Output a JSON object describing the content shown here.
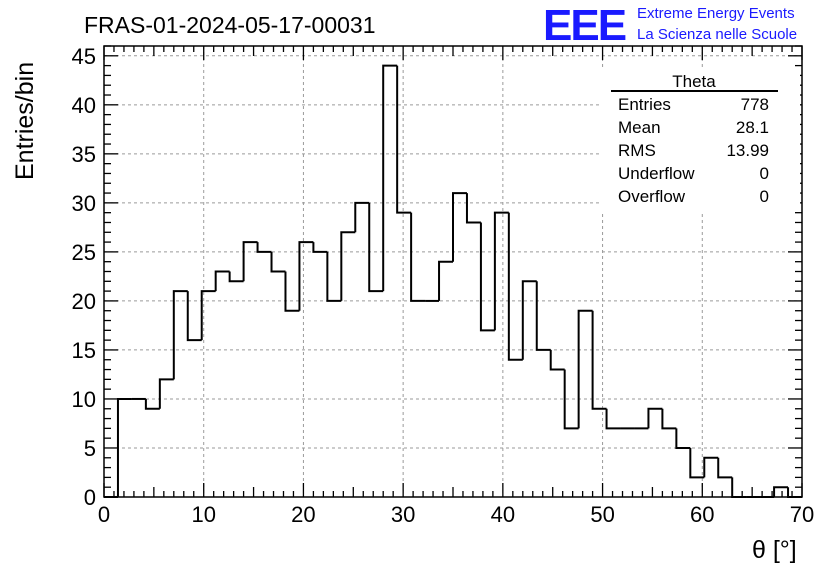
{
  "header": {
    "run_title": "FRAS-01-2024-05-17-00031",
    "logo_letters": "EEE",
    "logo_line1": "Extreme Energy Events",
    "logo_line2": "La Scienza nelle Scuole",
    "logo_color": "#1a1aff"
  },
  "stats_box": {
    "title": "Theta",
    "rows": [
      {
        "label": "Entries",
        "value": "778"
      },
      {
        "label": "Mean",
        "value": "28.1"
      },
      {
        "label": "RMS",
        "value": "13.99"
      },
      {
        "label": "Underflow",
        "value": "0"
      },
      {
        "label": "Overflow",
        "value": "0"
      }
    ]
  },
  "chart_data": {
    "type": "bar",
    "histogram_style": "step",
    "xlabel": "θ [°]",
    "ylabel": "Entries/bin",
    "xlim": [
      0,
      70
    ],
    "ylim": [
      0,
      46
    ],
    "x_ticks": [
      0,
      10,
      20,
      30,
      40,
      50,
      60,
      70
    ],
    "y_ticks": [
      0,
      5,
      10,
      15,
      20,
      25,
      30,
      35,
      40,
      45
    ],
    "grid": true,
    "bin_edges": [
      0,
      1.4,
      2.8,
      4.2,
      5.6,
      7,
      8.4,
      9.8,
      11.2,
      12.6,
      14,
      15.4,
      16.8,
      18.2,
      19.6,
      21,
      22.4,
      23.8,
      25.2,
      26.6,
      28,
      29.4,
      30.8,
      32.2,
      33.6,
      35,
      36.4,
      37.8,
      39.2,
      40.6,
      42,
      43.4,
      44.8,
      46.2,
      47.6,
      49,
      50.4,
      51.8,
      53.2,
      54.6,
      56,
      57.4,
      58.8,
      60.2,
      61.6,
      63,
      64.4,
      65.8,
      67.2,
      68.6,
      70
    ],
    "values": [
      0,
      10,
      10,
      9,
      12,
      21,
      16,
      21,
      23,
      22,
      26,
      25,
      23,
      19,
      26,
      25,
      20,
      27,
      30,
      21,
      44,
      29,
      20,
      20,
      24,
      31,
      28,
      17,
      29,
      14,
      22,
      15,
      13,
      7,
      19,
      9,
      7,
      7,
      7,
      9,
      7,
      5,
      2,
      4,
      2,
      0,
      0,
      0,
      1,
      0
    ],
    "line_color": "#000000"
  }
}
